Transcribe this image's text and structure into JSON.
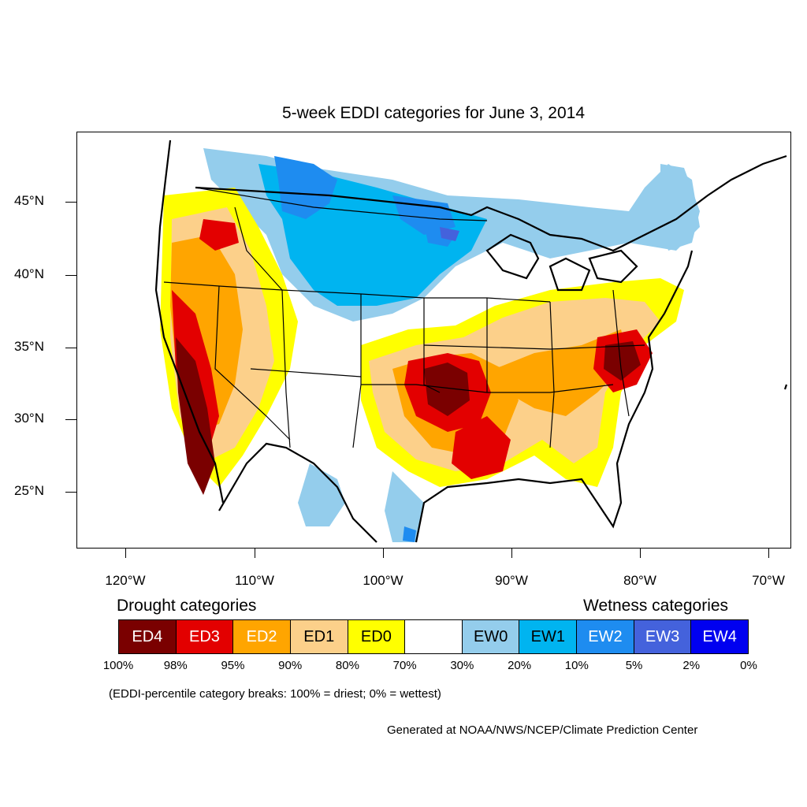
{
  "title": "5-week EDDI categories for June 3, 2014",
  "lat_labels": [
    "45°N",
    "40°N",
    "35°N",
    "30°N",
    "25°N"
  ],
  "lon_labels": [
    "120°W",
    "110°W",
    "100°W",
    "90°W",
    "80°W",
    "70°W"
  ],
  "legend": {
    "drought_heading": "Drought categories",
    "wetness_heading": "Wetness categories",
    "categories": [
      {
        "label": "ED4",
        "color": "#7a0000",
        "text_color": "#ffffff"
      },
      {
        "label": "ED3",
        "color": "#e30000",
        "text_color": "#ffffff"
      },
      {
        "label": "ED2",
        "color": "#ffa500",
        "text_color": "#ffffff"
      },
      {
        "label": "ED1",
        "color": "#fcd08a",
        "text_color": "#000000"
      },
      {
        "label": "ED0",
        "color": "#ffff00",
        "text_color": "#000000"
      },
      {
        "label": "",
        "color": "#ffffff",
        "text_color": "#000000"
      },
      {
        "label": "EW0",
        "color": "#94cdec",
        "text_color": "#000000"
      },
      {
        "label": "EW1",
        "color": "#00b4f0",
        "text_color": "#000000"
      },
      {
        "label": "EW2",
        "color": "#1e8cf0",
        "text_color": "#ffffff"
      },
      {
        "label": "EW3",
        "color": "#4462dc",
        "text_color": "#ffffff"
      },
      {
        "label": "EW4",
        "color": "#0000f0",
        "text_color": "#ffffff"
      }
    ],
    "percentiles": [
      "100%",
      "98%",
      "95%",
      "90%",
      "80%",
      "70%",
      "30%",
      "20%",
      "10%",
      "5%",
      "2%",
      "0%"
    ]
  },
  "note": "(EDDI-percentile category breaks: 100% = driest; 0% = wettest)",
  "credit": "Generated at NOAA/NWS/NCEP/Climate Prediction Center"
}
